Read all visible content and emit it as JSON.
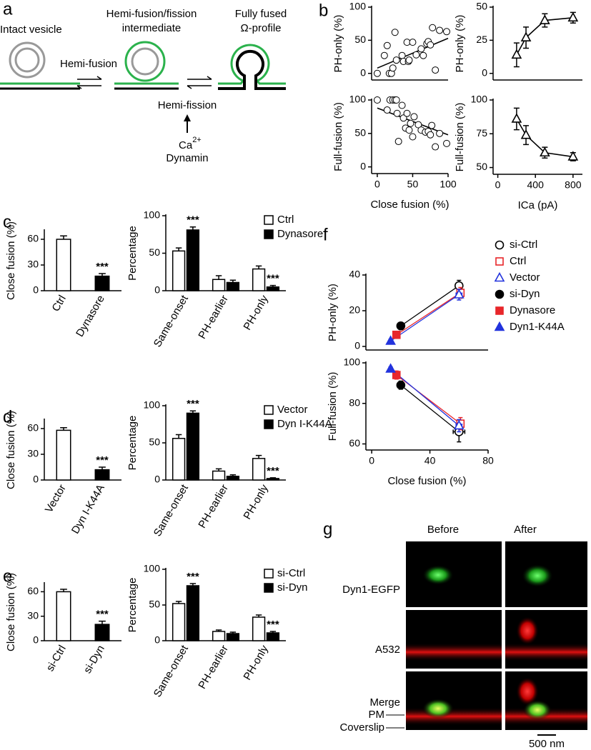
{
  "panels": [
    "a",
    "b",
    "c",
    "d",
    "e",
    "f",
    "g"
  ],
  "diagram": {
    "intact": "Intact vesicle",
    "intermediate": [
      "Hemi-fusion/fission",
      "intermediate"
    ],
    "fused": [
      "Fully fused",
      "Ω-profile"
    ],
    "hemi_fusion": "Hemi-fusion",
    "hemi_fission": "Hemi-fission",
    "calcium": "Ca",
    "calcium_charge": "2+",
    "dynamin": "Dynamin"
  },
  "images": {
    "columns": [
      "Before",
      "After"
    ],
    "rows": [
      "Dyn1-EGFP",
      "A532",
      "Merge"
    ],
    "layers": [
      "PM",
      "Coverslip"
    ],
    "scale_bar": "500 nm"
  },
  "chart_data": [
    {
      "type": "scatter",
      "ylabel": "PH-only (%)",
      "color": "#000000",
      "x": [
        0,
        10,
        14,
        17,
        20,
        22,
        25,
        27,
        35,
        37,
        42,
        44,
        45,
        50,
        55,
        62,
        65,
        70,
        72,
        75,
        78,
        82,
        88,
        98
      ],
      "values": [
        0,
        27,
        42,
        0,
        0,
        8,
        62,
        20,
        27,
        18,
        47,
        18,
        20,
        47,
        28,
        37,
        27,
        45,
        48,
        43,
        69,
        5,
        65,
        63
      ],
      "fit": {
        "x": [
          0,
          100
        ],
        "y": [
          8,
          53
        ]
      },
      "xlim": [
        -8,
        100
      ],
      "ylim": [
        -10,
        100
      ],
      "yticks": [
        0,
        50,
        100
      ]
    },
    {
      "type": "line",
      "ylabel": "PH-only (%)",
      "color": "#000000",
      "marker": "triangle",
      "x": [
        200,
        300,
        500,
        800
      ],
      "values": [
        14,
        27,
        40,
        42
      ],
      "errors": [
        9,
        8,
        5,
        4
      ],
      "xlim": [
        -50,
        900
      ],
      "ylim": [
        -5,
        50
      ],
      "yticks": [
        0,
        25,
        50
      ]
    },
    {
      "type": "scatter",
      "ylabel": "Full-fusion (%)",
      "xlabel": "Close fusion (%)",
      "color": "#000000",
      "x": [
        0,
        14,
        18,
        22,
        25,
        27,
        28,
        30,
        35,
        37,
        40,
        42,
        45,
        47,
        50,
        52,
        58,
        62,
        68,
        72,
        75,
        77,
        82,
        88,
        98
      ],
      "values": [
        100,
        85,
        100,
        100,
        100,
        100,
        80,
        38,
        92,
        73,
        58,
        80,
        55,
        65,
        45,
        75,
        63,
        55,
        52,
        53,
        48,
        62,
        30,
        50,
        35
      ],
      "fit": {
        "x": [
          0,
          100
        ],
        "y": [
          88,
          48
        ]
      },
      "xlim": [
        -8,
        100
      ],
      "xticks": [
        0,
        50,
        100
      ],
      "ylim": [
        -10,
        100
      ],
      "yticks": [
        0,
        50,
        100
      ]
    },
    {
      "type": "line",
      "ylabel": "Full-fusion (%)",
      "xlabel": "ICa (pA)",
      "color": "#000000",
      "marker": "triangle",
      "x": [
        200,
        300,
        500,
        800
      ],
      "values": [
        86,
        74,
        61,
        58
      ],
      "errors": [
        8,
        7,
        4,
        3
      ],
      "xlim": [
        -50,
        900
      ],
      "xticks": [
        0,
        400,
        800
      ],
      "ylim": [
        45,
        100
      ],
      "yticks": [
        50,
        75,
        100
      ]
    },
    {
      "type": "bar",
      "ylabel": "Close fusion (%)",
      "categories": [
        "Ctrl",
        "Dynasore"
      ],
      "values": [
        60,
        17
      ],
      "errors": [
        4,
        3
      ],
      "colors": [
        "#ffffff",
        "#000000"
      ],
      "significance": [
        null,
        "***"
      ],
      "ylim": [
        0,
        70
      ],
      "yticks": [
        0,
        30,
        60
      ]
    },
    {
      "type": "bar",
      "ylabel": "Percentage",
      "categories": [
        "Same-onset",
        "PH-earlier",
        "PH-only"
      ],
      "legend": "upper right",
      "series": [
        {
          "name": "Ctrl",
          "color": "#ffffff",
          "values": [
            53,
            15,
            29
          ],
          "errors": [
            4,
            5,
            4
          ]
        },
        {
          "name": "Dynasore",
          "color": "#000000",
          "values": [
            81,
            11,
            5
          ],
          "errors": [
            4,
            3,
            2
          ],
          "significance": [
            "***",
            null,
            "***"
          ]
        }
      ],
      "ylim": [
        0,
        100
      ],
      "yticks": [
        0,
        50,
        100
      ]
    },
    {
      "type": "bar",
      "ylabel": "Close fusion (%)",
      "categories": [
        "Vector",
        "Dyn I-K44A"
      ],
      "values": [
        58,
        12
      ],
      "errors": [
        3,
        3
      ],
      "colors": [
        "#ffffff",
        "#000000"
      ],
      "significance": [
        null,
        "***"
      ],
      "ylim": [
        0,
        70
      ],
      "yticks": [
        0,
        30,
        60
      ]
    },
    {
      "type": "bar",
      "ylabel": "Percentage",
      "categories": [
        "Same-onset",
        "PH-earlier",
        "PH-only"
      ],
      "legend": "upper right",
      "series": [
        {
          "name": "Vector",
          "color": "#ffffff",
          "values": [
            56,
            12,
            29
          ],
          "errors": [
            5,
            3,
            4
          ]
        },
        {
          "name": "Dyn I-K44A",
          "color": "#000000",
          "values": [
            90,
            5,
            2
          ],
          "errors": [
            3,
            2,
            1
          ],
          "significance": [
            "***",
            null,
            "***"
          ]
        }
      ],
      "ylim": [
        0,
        100
      ],
      "yticks": [
        0,
        50,
        100
      ]
    },
    {
      "type": "bar",
      "ylabel": "Close fusion (%)",
      "categories": [
        "si-Ctrl",
        "si-Dyn"
      ],
      "values": [
        60,
        20
      ],
      "errors": [
        3,
        4
      ],
      "colors": [
        "#ffffff",
        "#000000"
      ],
      "significance": [
        null,
        "***"
      ],
      "ylim": [
        0,
        70
      ],
      "yticks": [
        0,
        30,
        60
      ]
    },
    {
      "type": "bar",
      "ylabel": "Percentage",
      "categories": [
        "Same-onset",
        "PH-earlier",
        "PH-only"
      ],
      "legend": "upper right",
      "series": [
        {
          "name": "si-Ctrl",
          "color": "#ffffff",
          "values": [
            52,
            13,
            33
          ],
          "errors": [
            3,
            2,
            3
          ]
        },
        {
          "name": "si-Dyn",
          "color": "#000000",
          "values": [
            77,
            10,
            11
          ],
          "errors": [
            3,
            2,
            2
          ],
          "significance": [
            "***",
            null,
            "***"
          ]
        }
      ],
      "ylim": [
        0,
        100
      ],
      "yticks": [
        0,
        50,
        100
      ]
    },
    {
      "type": "scatter",
      "ylabel": "PH-only (%)",
      "legend": "right",
      "xlim": [
        -4,
        80
      ],
      "ylim": [
        -2,
        40
      ],
      "yticks": [
        0,
        20,
        40
      ],
      "series": [
        {
          "name": "si-Ctrl",
          "color": "#000000",
          "marker": "circle",
          "filled": false,
          "x": [
            60
          ],
          "y": [
            34
          ],
          "xerr": [
            2
          ],
          "yerr": [
            3
          ]
        },
        {
          "name": "Ctrl",
          "color": "#e8262a",
          "marker": "square",
          "filled": false,
          "x": [
            61
          ],
          "y": [
            30
          ],
          "xerr": [
            2
          ],
          "yerr": [
            3
          ]
        },
        {
          "name": "Vector",
          "color": "#2233dd",
          "marker": "triangle",
          "filled": false,
          "x": [
            60
          ],
          "y": [
            29
          ],
          "xerr": [
            2
          ],
          "yerr": [
            3
          ]
        },
        {
          "name": "si-Dyn",
          "color": "#000000",
          "marker": "circle",
          "filled": true,
          "x": [
            20
          ],
          "y": [
            11.5
          ],
          "xerr": [
            2
          ],
          "yerr": [
            2
          ]
        },
        {
          "name": "Dynasore",
          "color": "#e8262a",
          "marker": "square",
          "filled": true,
          "x": [
            17
          ],
          "y": [
            6.5
          ],
          "xerr": [
            2
          ],
          "yerr": [
            1.5
          ]
        },
        {
          "name": "Dyn1-K44A",
          "color": "#2233dd",
          "marker": "triangle",
          "filled": true,
          "x": [
            13
          ],
          "y": [
            3
          ],
          "xerr": [
            1
          ],
          "yerr": [
            1
          ]
        }
      ]
    },
    {
      "type": "scatter",
      "ylabel": "Full-fusion (%)",
      "xlabel": "Close fusion (%)",
      "xlim": [
        -4,
        80
      ],
      "xticks": [
        0,
        40,
        80
      ],
      "ylim": [
        57,
        100
      ],
      "yticks": [
        60,
        80,
        100
      ],
      "series": [
        {
          "color": "#000000",
          "marker": "circle",
          "filled": false,
          "x": [
            60
          ],
          "y": [
            66
          ],
          "xerr": [
            4
          ],
          "yerr": [
            5
          ]
        },
        {
          "color": "#e8262a",
          "marker": "square",
          "filled": false,
          "x": [
            61
          ],
          "y": [
            70
          ],
          "xerr": [
            2
          ],
          "yerr": [
            3
          ]
        },
        {
          "color": "#2233dd",
          "marker": "triangle",
          "filled": false,
          "x": [
            60
          ],
          "y": [
            69
          ],
          "xerr": [
            2
          ],
          "yerr": [
            3
          ]
        },
        {
          "color": "#000000",
          "marker": "circle",
          "filled": true,
          "x": [
            20
          ],
          "y": [
            89
          ],
          "xerr": [
            2
          ],
          "yerr": [
            2
          ]
        },
        {
          "color": "#e8262a",
          "marker": "square",
          "filled": true,
          "x": [
            17
          ],
          "y": [
            94
          ],
          "xerr": [
            2
          ],
          "yerr": [
            2
          ]
        },
        {
          "color": "#2233dd",
          "marker": "triangle",
          "filled": true,
          "x": [
            13
          ],
          "y": [
            97
          ],
          "xerr": [
            1
          ],
          "yerr": [
            1
          ]
        }
      ]
    }
  ]
}
